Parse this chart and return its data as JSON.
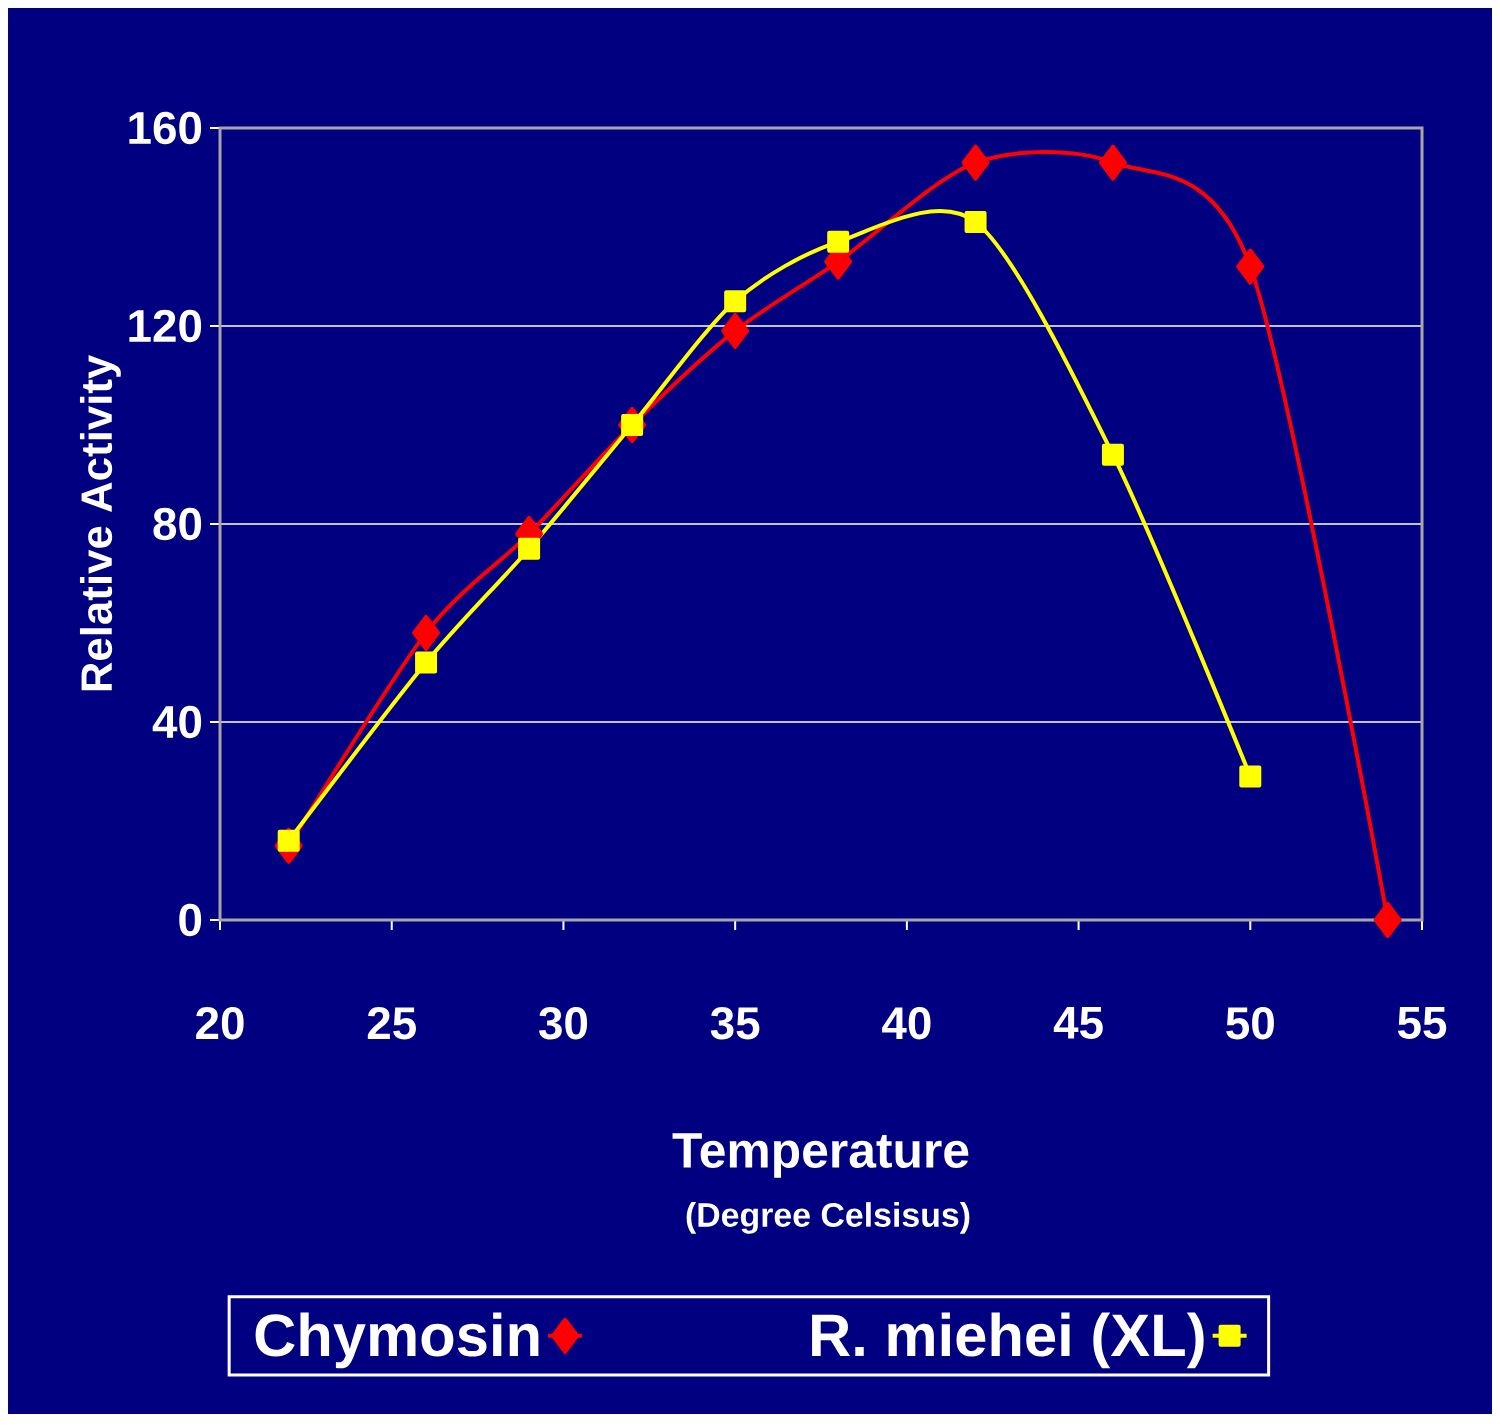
{
  "chart_data": {
    "type": "line",
    "xlabel": "Temperature",
    "ylabel": "Relative Activity",
    "annotations": [
      "(Degree Celsisus)"
    ],
    "x": [
      22,
      26,
      29,
      32,
      35,
      38,
      42,
      46,
      50,
      54
    ],
    "series": [
      {
        "name": "Chymosin",
        "color": "#ff0000",
        "marker": "diamond",
        "values": [
          15,
          58,
          78,
          100,
          119,
          133,
          153,
          153,
          132,
          0
        ]
      },
      {
        "name": "R. miehei (XL)",
        "color": "#ffff00",
        "marker": "square",
        "values": [
          16,
          52,
          75,
          100,
          125,
          137,
          141,
          94,
          29,
          null
        ]
      }
    ],
    "xlim": [
      20,
      55
    ],
    "xticks": [
      20,
      25,
      30,
      35,
      40,
      45,
      50,
      55
    ],
    "ylim": [
      0,
      160
    ],
    "yticks": [
      0,
      40,
      80,
      120,
      160
    ],
    "grid": "y",
    "legend": "bottom"
  }
}
